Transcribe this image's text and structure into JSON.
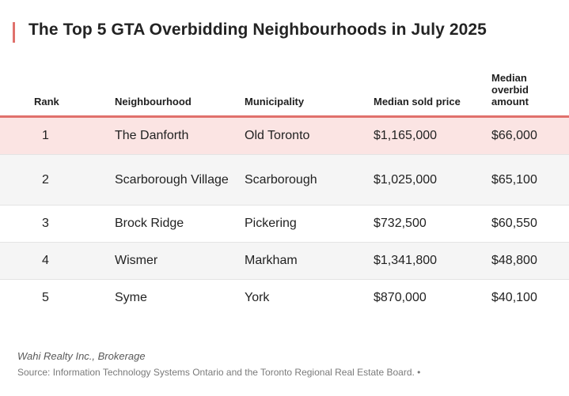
{
  "title": "The Top 5 GTA Overbidding Neighbourhoods in July 2025",
  "accent_color": "#e0716c",
  "highlight_color": "#fbe4e3",
  "columns": {
    "rank": "Rank",
    "neighbourhood": "Neighbourhood",
    "municipality": "Municipality",
    "median_sold_price": "Median sold price",
    "median_overbid_line1": "Median",
    "median_overbid_line2": "overbid",
    "median_overbid_line3": "amount"
  },
  "rows": [
    {
      "rank": "1",
      "neighbourhood": "The Danforth",
      "municipality": "Old Toronto",
      "median_sold_price": "$1,165,000",
      "median_overbid": "$66,000"
    },
    {
      "rank": "2",
      "neighbourhood": "Scarborough Village",
      "municipality": "Scarborough",
      "median_sold_price": "$1,025,000",
      "median_overbid": "$65,100"
    },
    {
      "rank": "3",
      "neighbourhood": "Brock Ridge",
      "municipality": "Pickering",
      "median_sold_price": "$732,500",
      "median_overbid": "$60,550"
    },
    {
      "rank": "4",
      "neighbourhood": "Wismer",
      "municipality": "Markham",
      "median_sold_price": "$1,341,800",
      "median_overbid": "$48,800"
    },
    {
      "rank": "5",
      "neighbourhood": "Syme",
      "municipality": "York",
      "median_sold_price": "$870,000",
      "median_overbid": "$40,100"
    }
  ],
  "footer": {
    "brokerage": "Wahi Realty Inc., Brokerage",
    "source": "Source: Information Technology Systems Ontario and the Toronto Regional Real Estate Board. •"
  }
}
